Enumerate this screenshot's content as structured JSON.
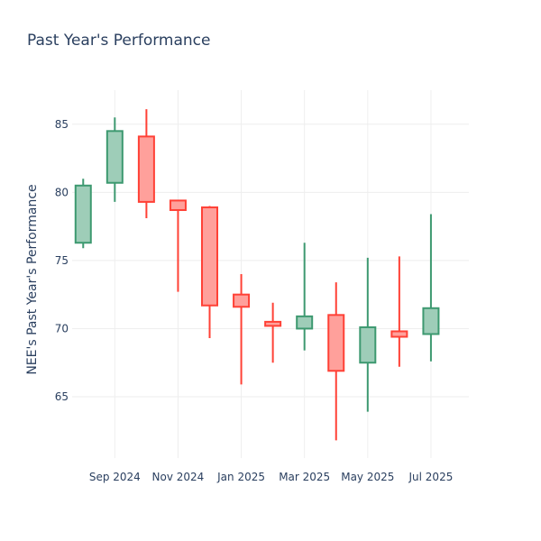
{
  "chart_data": {
    "type": "candlestick",
    "title": "Past Year's Performance",
    "ylabel": "NEE's Past Year's Performance",
    "xlabel": "",
    "ylim": [
      60.5,
      87.5
    ],
    "yticks": [
      65,
      70,
      75,
      80,
      85
    ],
    "xticks": [
      {
        "label": "Sep 2024",
        "month": 2
      },
      {
        "label": "Nov 2024",
        "month": 4
      },
      {
        "label": "Jan 2025",
        "month": 6
      },
      {
        "label": "Mar 2025",
        "month": 8
      },
      {
        "label": "May 2025",
        "month": 10
      },
      {
        "label": "Jul 2025",
        "month": 12
      }
    ],
    "xlim": [
      0.65,
      13.2
    ],
    "grid": true,
    "increasing_color": "#3d9970",
    "increasing_fill": "#9ecdb8",
    "decreasing_color": "#ff4136",
    "decreasing_fill": "#ffa09b",
    "candles": [
      {
        "date": "2024-08",
        "open": 76.3,
        "high": 81.0,
        "low": 75.9,
        "close": 80.5
      },
      {
        "date": "2024-09",
        "open": 80.7,
        "high": 85.5,
        "low": 79.3,
        "close": 84.5
      },
      {
        "date": "2024-10",
        "open": 84.1,
        "high": 86.1,
        "low": 78.1,
        "close": 79.3
      },
      {
        "date": "2024-11",
        "open": 79.4,
        "high": 79.4,
        "low": 72.7,
        "close": 78.7
      },
      {
        "date": "2024-12",
        "open": 78.9,
        "high": 79.0,
        "low": 69.3,
        "close": 71.7
      },
      {
        "date": "2025-01",
        "open": 72.5,
        "high": 74.0,
        "low": 65.9,
        "close": 71.6
      },
      {
        "date": "2025-02",
        "open": 70.5,
        "high": 71.9,
        "low": 67.5,
        "close": 70.2
      },
      {
        "date": "2025-03",
        "open": 70.0,
        "high": 76.3,
        "low": 68.4,
        "close": 70.9
      },
      {
        "date": "2025-04",
        "open": 71.0,
        "high": 73.4,
        "low": 61.8,
        "close": 66.9
      },
      {
        "date": "2025-05",
        "open": 67.5,
        "high": 75.2,
        "low": 63.9,
        "close": 70.1
      },
      {
        "date": "2025-06",
        "open": 69.8,
        "high": 75.3,
        "low": 67.2,
        "close": 69.4
      },
      {
        "date": "2025-07",
        "open": 69.6,
        "high": 78.4,
        "low": 67.6,
        "close": 71.5
      }
    ]
  }
}
